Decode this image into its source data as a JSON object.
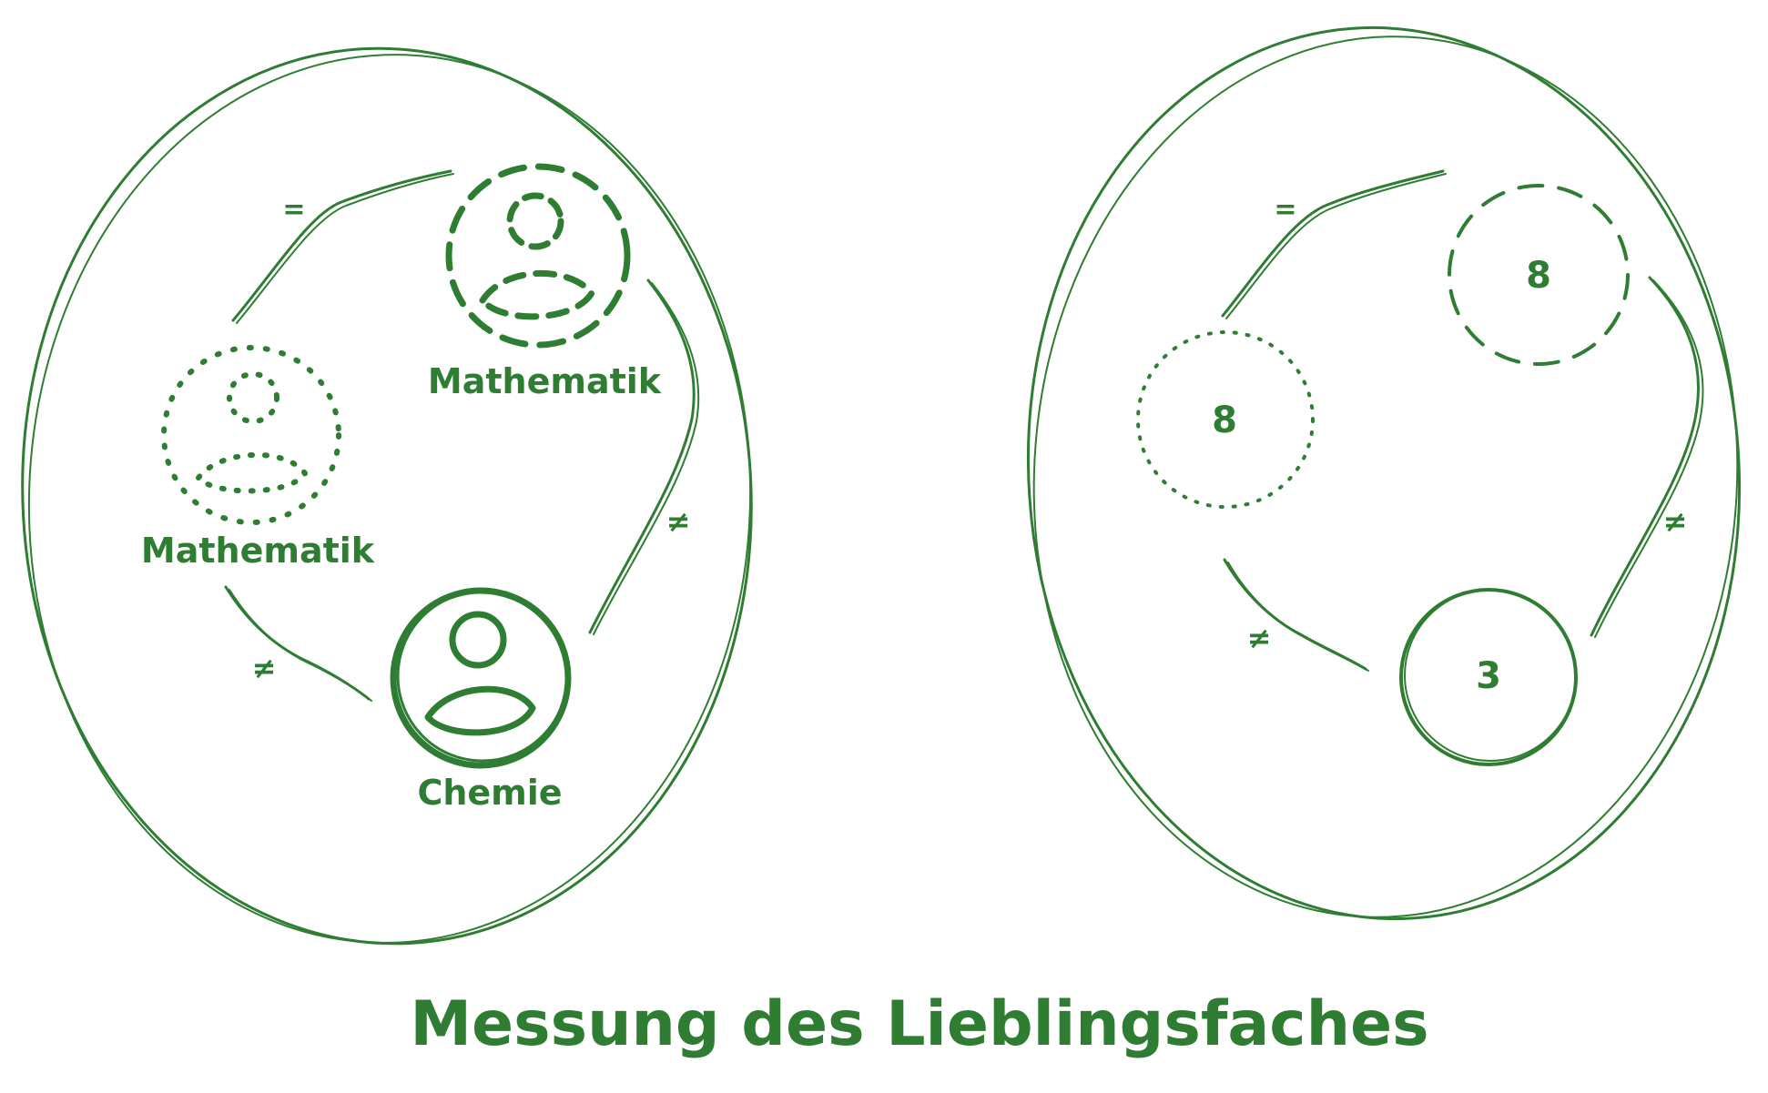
{
  "colors": {
    "ink": "#2e7d32",
    "background": "#ffffff"
  },
  "left_panel": {
    "relation_equal": "=",
    "relation_not_equal_right": "≠",
    "relation_not_equal_bottom": "≠",
    "node_dotted": {
      "label": "Mathematik",
      "icon": "person-icon",
      "border": "dotted"
    },
    "node_dashed": {
      "label": "Mathematik",
      "icon": "person-icon",
      "border": "dashed"
    },
    "node_solid": {
      "label": "Chemie",
      "icon": "person-icon",
      "border": "solid"
    }
  },
  "right_panel": {
    "relation_equal": "=",
    "relation_not_equal_right": "≠",
    "relation_not_equal_bottom": "≠",
    "node_dotted": {
      "value": "8",
      "border": "dotted"
    },
    "node_dashed": {
      "value": "8",
      "border": "dashed"
    },
    "node_solid": {
      "value": "3",
      "border": "solid"
    }
  },
  "title": "Messung des Lieblingsfaches"
}
